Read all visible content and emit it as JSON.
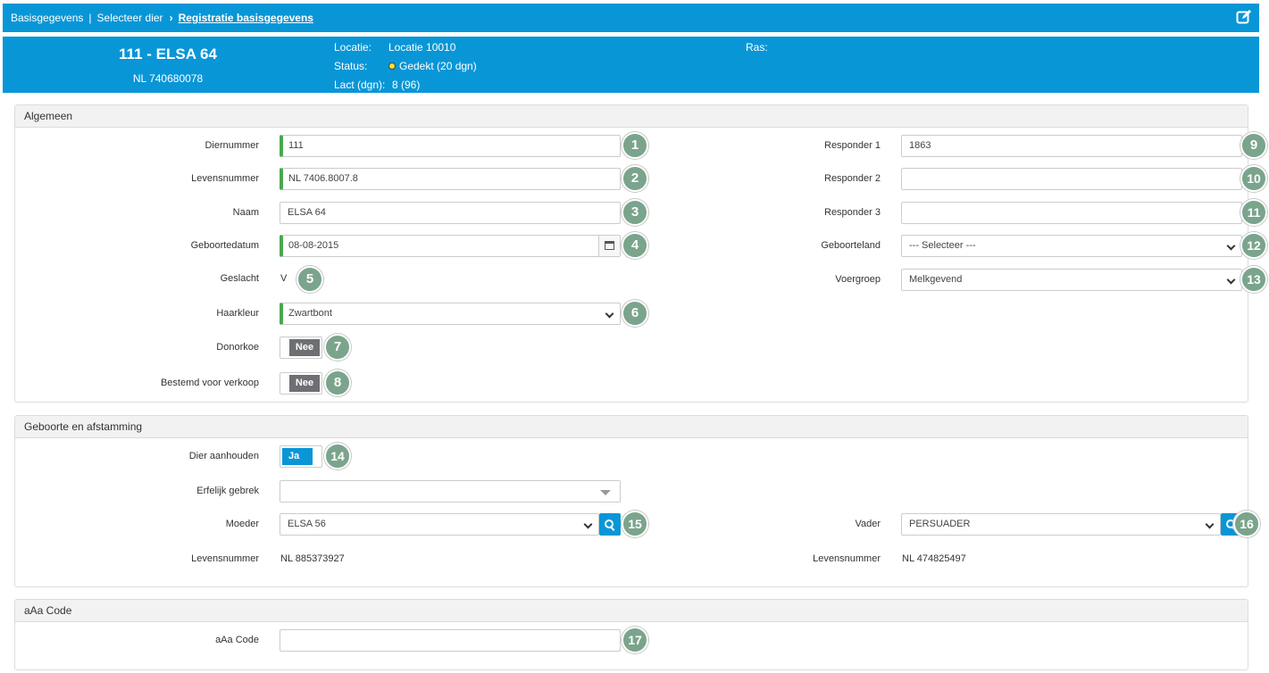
{
  "breadcrumb": {
    "item1": "Basisgegevens",
    "separator": "|",
    "item2": "Selecteer dier",
    "chevron": "›",
    "current": "Registratie basisgegevens",
    "edit_icon": "edit-icon"
  },
  "animal": {
    "title": "111 - ELSA 64",
    "life_number": "NL 740680078",
    "locatie_label": "Locatie:",
    "locatie_value": "Locatie 10010",
    "status_label": "Status:",
    "status_value": "Gedekt (20 dgn)",
    "status_color": "#f3e32b",
    "lact_label": "Lact (dgn):",
    "lact_value": "8 (96)",
    "ras_label": "Ras:"
  },
  "algemeen": {
    "title": "Algemeen",
    "diernummer_label": "Diernummer",
    "diernummer_value": "111",
    "levensnummer_label": "Levensnummer",
    "levensnummer_value": "NL 7406.8007.8",
    "naam_label": "Naam",
    "naam_value": "ELSA 64",
    "geboortedatum_label": "Geboortedatum",
    "geboortedatum_value": "08-08-2015",
    "geslacht_label": "Geslacht",
    "geslacht_value": "V",
    "haarkleur_label": "Haarkleur",
    "haarkleur_value": "Zwartbont",
    "donorkoe_label": "Donorkoe",
    "donorkoe_value": "Nee",
    "verkoop_label": "Bestemd voor verkoop",
    "verkoop_value": "Nee",
    "responder1_label": "Responder 1",
    "responder1_value": "1863",
    "responder2_label": "Responder 2",
    "responder2_value": "",
    "responder3_label": "Responder 3",
    "responder3_value": "",
    "geboorteland_label": "Geboorteland",
    "geboorteland_value": "--- Selecteer ---",
    "voergroep_label": "Voergroep",
    "voergroep_value": "Melkgevend"
  },
  "geboorte": {
    "title": "Geboorte en afstamming",
    "aanhouden_label": "Dier aanhouden",
    "aanhouden_value": "Ja",
    "gebrek_label": "Erfelijk gebrek",
    "gebrek_value": "",
    "moeder_label": "Moeder",
    "moeder_value": "ELSA 56",
    "moeder_levensnummer_label": "Levensnummer",
    "moeder_levensnummer_value": "NL 885373927",
    "vader_label": "Vader",
    "vader_value": "PERSUADER",
    "vader_levensnummer_label": "Levensnummer",
    "vader_levensnummer_value": "NL 474825497"
  },
  "aaa": {
    "title": "aAa Code",
    "code_label": "aAa Code",
    "code_value": ""
  },
  "badges": [
    "1",
    "2",
    "3",
    "4",
    "5",
    "6",
    "7",
    "8",
    "9",
    "10",
    "11",
    "12",
    "13",
    "14",
    "15",
    "16",
    "17"
  ],
  "colors": {
    "brand": "#0996d7",
    "required": "#4aa84f",
    "badge": "#7ba48c",
    "toggle_off": "#6d6f72"
  }
}
